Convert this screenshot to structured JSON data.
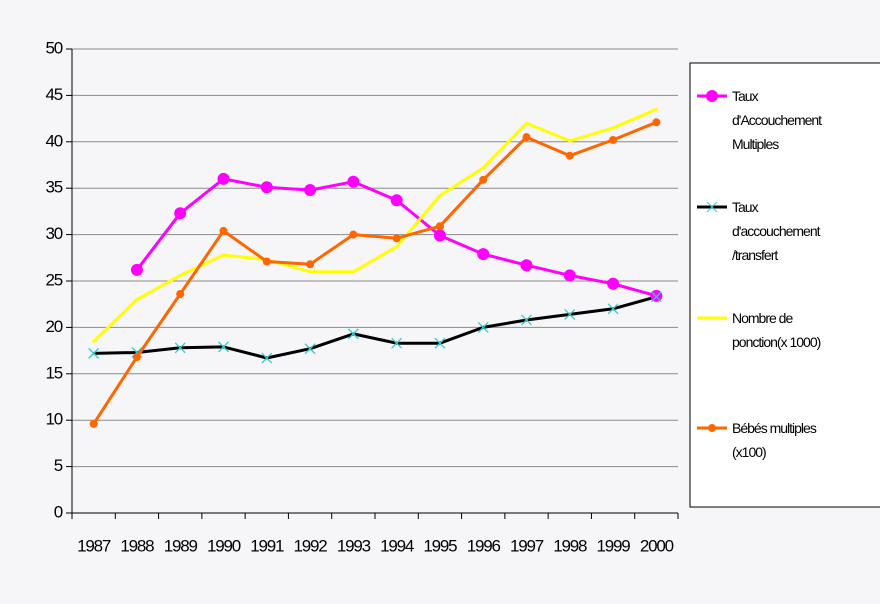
{
  "chart_data": {
    "type": "line",
    "categories": [
      "1987",
      "1988",
      "1989",
      "1990",
      "1991",
      "1992",
      "1993",
      "1994",
      "1995",
      "1996",
      "1997",
      "1998",
      "1999",
      "2000"
    ],
    "series": [
      {
        "name": "Taux d'Accouchement Multiples",
        "color": "#ff00ff",
        "marker": "circle",
        "values": [
          null,
          26.2,
          32.3,
          36.0,
          35.1,
          34.8,
          35.7,
          33.7,
          29.9,
          27.9,
          26.7,
          25.6,
          24.7,
          23.4
        ]
      },
      {
        "name": "Taux d'accouchement /transfert",
        "color": "#000000",
        "marker": "x",
        "marker_color": "#33cccc",
        "values": [
          17.2,
          17.3,
          17.8,
          17.9,
          16.7,
          17.7,
          19.3,
          18.3,
          18.3,
          20.0,
          20.8,
          21.4,
          22.0,
          23.3
        ]
      },
      {
        "name": "Nombre de ponction(x 1000)",
        "color": "#ffff00",
        "marker": "none",
        "values": [
          18.5,
          23.0,
          25.6,
          27.8,
          27.3,
          26.0,
          26.0,
          28.7,
          34.2,
          37.2,
          42.0,
          40.1,
          41.5,
          43.5
        ]
      },
      {
        "name": "Bébés multiples (x100)",
        "color": "#ff6600",
        "marker": "circle",
        "values": [
          9.6,
          16.8,
          23.6,
          30.4,
          27.1,
          26.8,
          30.0,
          29.6,
          30.9,
          35.9,
          40.5,
          38.5,
          40.2,
          42.1
        ]
      }
    ],
    "ylim": [
      0,
      50
    ],
    "yticks": [
      0,
      5,
      10,
      15,
      20,
      25,
      30,
      35,
      40,
      45,
      50
    ],
    "grid": true,
    "legend": "right"
  }
}
